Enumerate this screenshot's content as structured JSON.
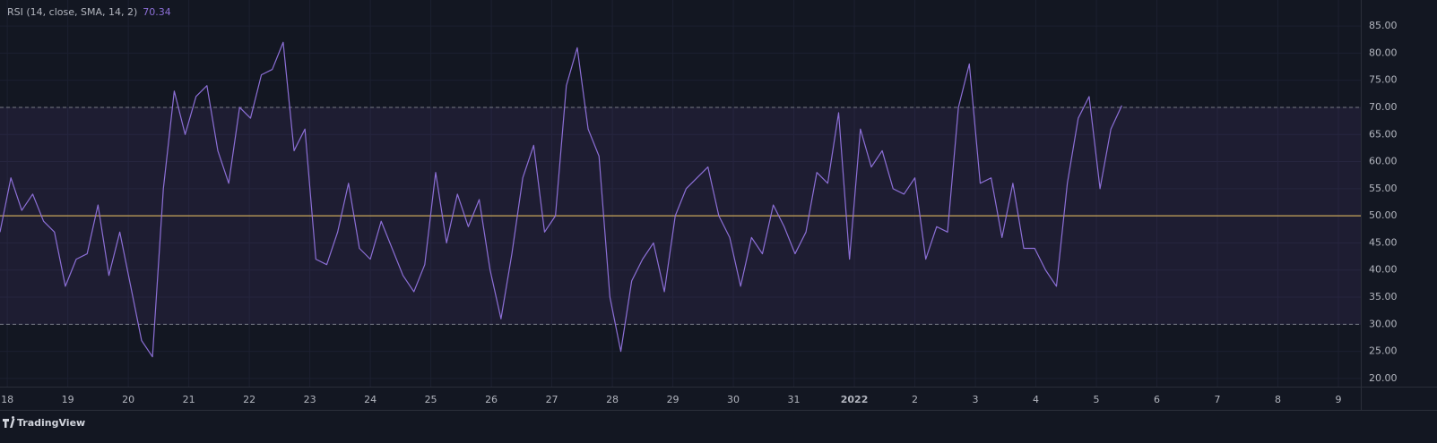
{
  "chart_data": {
    "type": "line",
    "series": [
      {
        "name": "RSI (14, close, SMA, 14, 2)",
        "color": "#8c6fd6",
        "x": [
          -0.12,
          0.06,
          0.24,
          0.42,
          0.6,
          0.78,
          0.96,
          1.14,
          1.32,
          1.5,
          1.68,
          1.86,
          2.04,
          2.22,
          2.4,
          2.58,
          2.76,
          2.94,
          3.12,
          3.3,
          3.48,
          3.66,
          3.84,
          4.02,
          4.2,
          4.38,
          4.56,
          4.74,
          4.92,
          5.1,
          5.28,
          5.46,
          5.64,
          5.82,
          6,
          6.18,
          6.36,
          6.54,
          6.72,
          6.9,
          7.08,
          7.26,
          7.44,
          7.62,
          7.8,
          7.98,
          8.16,
          8.34,
          8.52,
          8.7,
          8.88,
          9.06,
          9.24,
          9.42,
          9.6,
          9.78,
          9.96,
          10.14,
          10.32,
          10.5,
          10.68,
          10.86,
          11.04,
          11.22,
          11.4,
          11.58,
          11.76,
          11.94,
          12.12,
          12.3,
          12.48,
          12.66,
          12.84,
          13.02,
          13.2,
          13.38,
          13.56,
          13.74,
          13.92,
          14.1,
          14.28,
          14.46,
          14.64,
          14.82,
          15,
          15.18,
          15.36,
          15.54,
          15.72,
          15.9,
          16.08,
          16.26,
          16.44,
          16.62,
          16.8,
          16.98,
          17.16,
          17.34,
          17.52,
          17.7,
          17.88,
          18.06,
          18.24,
          18.42
        ],
        "values": [
          47,
          57,
          51,
          54,
          49,
          47,
          37,
          42,
          43,
          52,
          39,
          47,
          37,
          27,
          24,
          55,
          73,
          65,
          72,
          74,
          62,
          56,
          70,
          68,
          76,
          77,
          82,
          62,
          66,
          42,
          41,
          47,
          56,
          44,
          42,
          49,
          44,
          39,
          36,
          41,
          58,
          45,
          54,
          48,
          53,
          40,
          31,
          43,
          57,
          63,
          47,
          50,
          74,
          81,
          66,
          61,
          35,
          25,
          38,
          42,
          45,
          36,
          50,
          55,
          57,
          59,
          50,
          46,
          37,
          46,
          43,
          52,
          48,
          43,
          47,
          58,
          56,
          69,
          42,
          66,
          59,
          62,
          55,
          54,
          57,
          42,
          48,
          47,
          70,
          78,
          56,
          57,
          46,
          56,
          44,
          44,
          40,
          37,
          56,
          68,
          72,
          55,
          66,
          70.34
        ]
      }
    ],
    "upper_band": 70,
    "middle_line": 50,
    "lower_band": 30,
    "band_color": "#7e57c2",
    "middle_color": "#c9a659",
    "xlim": [
      -0.12,
      22.37
    ],
    "xticks": [
      {
        "value": 0,
        "label": "18"
      },
      {
        "value": 1,
        "label": "19"
      },
      {
        "value": 2,
        "label": "20"
      },
      {
        "value": 3,
        "label": "21"
      },
      {
        "value": 4,
        "label": "22"
      },
      {
        "value": 5,
        "label": "23"
      },
      {
        "value": 6,
        "label": "24"
      },
      {
        "value": 7,
        "label": "25"
      },
      {
        "value": 8,
        "label": "26"
      },
      {
        "value": 9,
        "label": "27"
      },
      {
        "value": 10,
        "label": "28"
      },
      {
        "value": 11,
        "label": "29"
      },
      {
        "value": 12,
        "label": "30"
      },
      {
        "value": 13,
        "label": "31"
      },
      {
        "value": 14,
        "label": "2022"
      },
      {
        "value": 15,
        "label": "2"
      },
      {
        "value": 16,
        "label": "3"
      },
      {
        "value": 17,
        "label": "4"
      },
      {
        "value": 18,
        "label": "5"
      },
      {
        "value": 19,
        "label": "6"
      },
      {
        "value": 20,
        "label": "7"
      },
      {
        "value": 21,
        "label": "8"
      },
      {
        "value": 22,
        "label": "9"
      }
    ],
    "ylim": [
      18.5,
      89.8
    ],
    "yticks": [
      {
        "value": 20,
        "label": "20.00"
      },
      {
        "value": 25,
        "label": "25.00"
      },
      {
        "value": 30,
        "label": "30.00"
      },
      {
        "value": 35,
        "label": "35.00"
      },
      {
        "value": 40,
        "label": "40.00"
      },
      {
        "value": 45,
        "label": "45.00"
      },
      {
        "value": 50,
        "label": "50.00"
      },
      {
        "value": 55,
        "label": "55.00"
      },
      {
        "value": 60,
        "label": "60.00"
      },
      {
        "value": 65,
        "label": "65.00"
      },
      {
        "value": 70,
        "label": "70.00"
      },
      {
        "value": 75,
        "label": "75.00"
      },
      {
        "value": 80,
        "label": "80.00"
      },
      {
        "value": 85,
        "label": "85.00"
      }
    ],
    "grid": true
  },
  "footer": {
    "brand": "TradingView"
  }
}
